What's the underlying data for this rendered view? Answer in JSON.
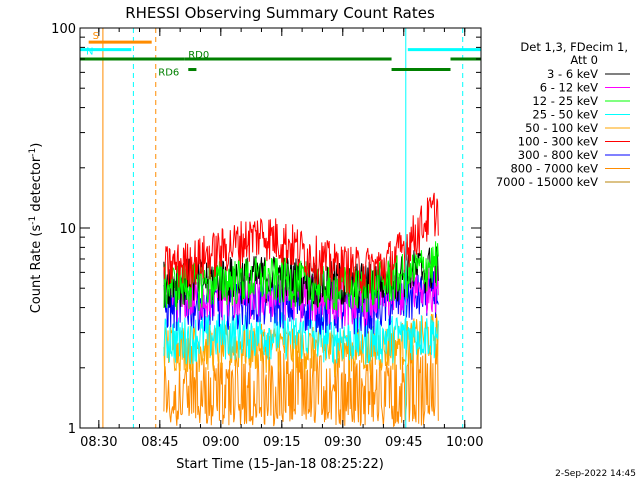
{
  "chart_data": {
    "type": "line",
    "title": "RHESSI Observing Summary Count Rates",
    "xlabel": "Start Time (15-Jan-18 08:25:22)",
    "ylabel": "Count Rate (s",
    "ylabel_sup": "-1",
    "ylabel_tail": " detector",
    "ylabel_tail_sup": "-1",
    "ylabel_close": ")",
    "yscale": "log",
    "ylim": [
      1,
      100
    ],
    "xlim": [
      "08:25:22",
      "10:04:00"
    ],
    "grid": false,
    "x_ticks": [
      "08:30",
      "08:45",
      "09:00",
      "09:15",
      "09:30",
      "09:45",
      "10:00"
    ],
    "y_ticks": [
      "1",
      "10",
      "100"
    ],
    "legend_placement": "right",
    "legend_header": [
      "Det 1,3, FDecim 1,",
      "Att 0"
    ],
    "legend": [
      {
        "name": "3 - 6 keV",
        "color": "#000000"
      },
      {
        "name": "6 - 12 keV",
        "color": "#ff00ff"
      },
      {
        "name": "12 - 25 keV",
        "color": "#00ff00"
      },
      {
        "name": "25 - 50 keV",
        "color": "#00ffff"
      },
      {
        "name": "50 - 100 keV",
        "color": "#ffa500"
      },
      {
        "name": "100 - 300 keV",
        "color": "#ff0000"
      },
      {
        "name": "300 - 800 keV",
        "color": "#0000ff"
      },
      {
        "name": "800 - 7000 keV",
        "color": "#ff8c00"
      },
      {
        "name": "7000 - 15000 keV",
        "color": "#b8860b"
      }
    ],
    "data_start": "08:46:00",
    "data_end": "09:53:30",
    "series": [
      {
        "name": "3 - 6 keV",
        "color": "#000000",
        "x": [
          "08:46",
          "08:55",
          "09:05",
          "09:15",
          "09:25",
          "09:35",
          "09:42",
          "09:48",
          "09:53"
        ],
        "y": [
          5.5,
          5.6,
          5.7,
          5.8,
          5.4,
          5.3,
          5.8,
          6.2,
          6.5
        ]
      },
      {
        "name": "6 - 12 keV",
        "color": "#ff00ff",
        "x": [
          "08:46",
          "08:55",
          "09:05",
          "09:15",
          "09:25",
          "09:35",
          "09:42",
          "09:48",
          "09:53"
        ],
        "y": [
          4.6,
          4.6,
          4.7,
          4.7,
          4.5,
          4.4,
          4.8,
          5.0,
          5.2
        ]
      },
      {
        "name": "12 - 25 keV",
        "color": "#00ff00",
        "x": [
          "08:46",
          "08:55",
          "09:05",
          "09:15",
          "09:25",
          "09:35",
          "09:42",
          "09:48",
          "09:53"
        ],
        "y": [
          5.2,
          5.3,
          5.6,
          5.6,
          5.2,
          5.0,
          5.6,
          6.2,
          6.8
        ]
      },
      {
        "name": "25 - 50 keV",
        "color": "#00ffff",
        "x": [
          "08:46",
          "08:55",
          "09:05",
          "09:15",
          "09:25",
          "09:35",
          "09:42",
          "09:48",
          "09:53"
        ],
        "y": [
          2.8,
          2.9,
          3.0,
          3.0,
          2.9,
          2.8,
          2.9,
          3.0,
          3.0
        ]
      },
      {
        "name": "50 - 100 keV",
        "color": "#ffa500",
        "x": [
          "08:46",
          "08:55",
          "09:05",
          "09:15",
          "09:25",
          "09:35",
          "09:42",
          "09:48",
          "09:53"
        ],
        "y": [
          2.6,
          2.6,
          2.6,
          2.6,
          2.5,
          2.5,
          2.6,
          2.8,
          3.0
        ]
      },
      {
        "name": "100 - 300 keV",
        "color": "#ff0000",
        "x": [
          "08:46",
          "08:52",
          "08:58",
          "09:04",
          "09:10",
          "09:16",
          "09:22",
          "09:28",
          "09:34",
          "09:40",
          "09:44",
          "09:48",
          "09:52",
          "09:53"
        ],
        "y": [
          6.4,
          6.8,
          7.5,
          8.5,
          9.5,
          8.6,
          7.4,
          6.6,
          6.3,
          6.5,
          7.6,
          9.5,
          12.0,
          12.5
        ]
      },
      {
        "name": "300 - 800 keV",
        "color": "#0000ff",
        "x": [
          "08:46",
          "08:55",
          "09:05",
          "09:15",
          "09:25",
          "09:35",
          "09:42",
          "09:48",
          "09:53"
        ],
        "y": [
          4.1,
          4.2,
          4.3,
          4.3,
          4.0,
          3.9,
          4.3,
          4.6,
          4.9
        ]
      },
      {
        "name": "800 - 7000 keV",
        "color": "#ff8c00",
        "x": [
          "08:46",
          "08:55",
          "09:05",
          "09:15",
          "09:25",
          "09:35",
          "09:42",
          "09:48",
          "09:53"
        ],
        "y": [
          1.6,
          1.6,
          1.7,
          1.8,
          1.7,
          1.6,
          1.7,
          1.9,
          2.1
        ]
      },
      {
        "name": "7000 - 15000 keV",
        "color": "#b8860b",
        "x": [
          "08:46",
          "09:53"
        ],
        "y": [
          1.0,
          1.0
        ]
      }
    ],
    "state_bars": [
      {
        "label": "S",
        "color": "#ff8c00",
        "start": "08:27:30",
        "end": "08:43:00",
        "y": 85
      },
      {
        "label": "N",
        "color": "#00ffff",
        "start": "08:25:22",
        "end": "08:38:00",
        "y": 78
      },
      {
        "label": "",
        "color": "#00ffff",
        "start": "09:46:00",
        "end": "10:04:00",
        "y": 78
      },
      {
        "label": "RD0",
        "color": "#008000",
        "start": "08:25:22",
        "end": "08:51:00",
        "y": 70
      },
      {
        "label": "",
        "color": "#008000",
        "start": "08:51:00",
        "end": "09:42:00",
        "y": 70
      },
      {
        "label": "RD6",
        "color": "#008000",
        "start": "08:52:00",
        "end": "08:54:00",
        "y": 62
      },
      {
        "label": "",
        "color": "#008000",
        "start": "09:42:00",
        "end": "09:56:30",
        "y": 62
      },
      {
        "label": "",
        "color": "#008000",
        "start": "09:56:30",
        "end": "10:04:00",
        "y": 70
      }
    ],
    "vlines": [
      {
        "time": "08:25:22",
        "color": "#00ffff",
        "style": "solid"
      },
      {
        "time": "08:31:00",
        "color": "#ff8c00",
        "style": "solid"
      },
      {
        "time": "08:38:30",
        "color": "#00ffff",
        "style": "dashed"
      },
      {
        "time": "08:44:00",
        "color": "#ff8c00",
        "style": "dashed"
      },
      {
        "time": "09:45:30",
        "color": "#00ffff",
        "style": "solid"
      },
      {
        "time": "09:59:30",
        "color": "#00ffff",
        "style": "dashed"
      }
    ],
    "footer_date": "2-Sep-2022 14:45"
  }
}
